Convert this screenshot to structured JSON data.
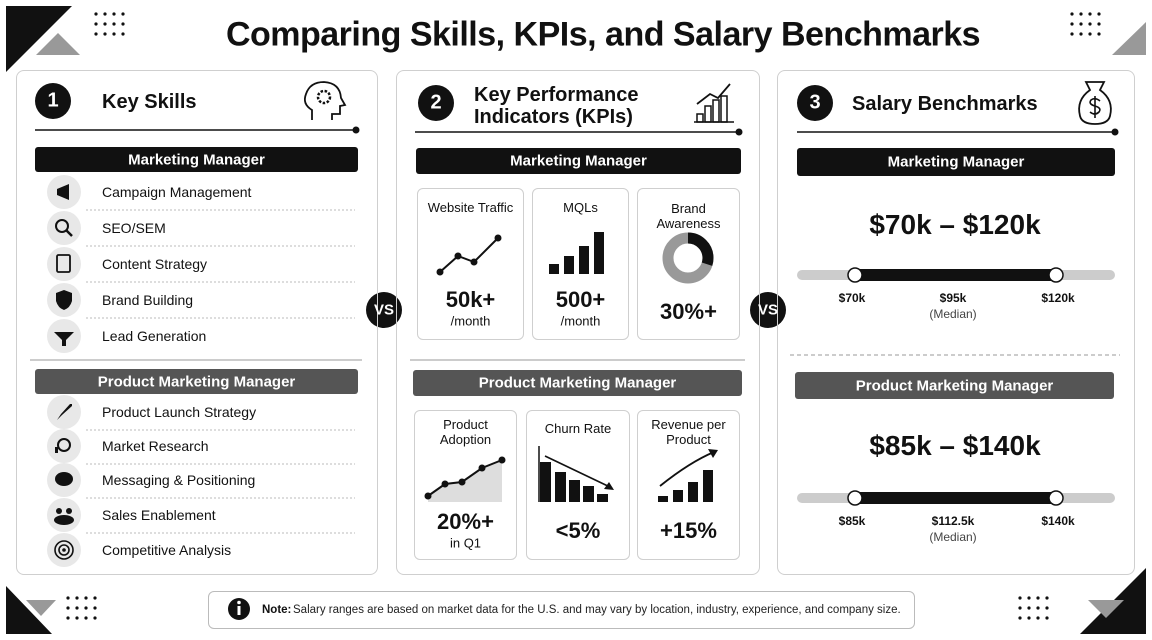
{
  "title": "Comparing Skills, KPIs, and Salary Benchmarks",
  "vs": [
    "VS",
    "VS"
  ],
  "panels": [
    {
      "number": "1",
      "title": "Key Skills",
      "groups": [
        {
          "role": "Marketing Manager",
          "items": [
            "Campaign Management",
            "SEO/SEM",
            "Content Strategy",
            "Brand Building",
            "Lead Generation"
          ]
        },
        {
          "role": "Product Marketing Manager",
          "items": [
            "Product Launch Strategy",
            "Market Research",
            "Messaging & Positioning",
            "Sales Enablement",
            "Competitive Analysis"
          ]
        }
      ]
    },
    {
      "number": "2",
      "title": "Key Performance Indicators (KPIs)",
      "groups": [
        {
          "role": "Marketing Manager",
          "kpis": [
            {
              "label": "Website Traffic",
              "value": "50k+",
              "unit": "/month"
            },
            {
              "label": "MQLs",
              "value": "500+",
              "unit": "/month"
            },
            {
              "label": "Brand Awareness",
              "value": "30%+"
            }
          ]
        },
        {
          "role": "Product Marketing Manager",
          "kpis": [
            {
              "label": "Product Adoption",
              "value": "20%+",
              "unit": "in Q1"
            },
            {
              "label": "Churn Rate",
              "value": "<5%"
            },
            {
              "label": "Revenue per Product",
              "value": "+15%"
            }
          ]
        }
      ]
    },
    {
      "number": "3",
      "title": "Salary Benchmarks",
      "groups": [
        {
          "role": "Marketing Manager",
          "range": "$70k – $120k",
          "min": "$70k",
          "median": "$95k",
          "median_note": "(Median)",
          "max": "$120k"
        },
        {
          "role": "Product Marketing Manager",
          "range": "$85k – $140k",
          "min": "$85k",
          "median": "$112.5k",
          "median_note": "(Median)",
          "max": "$140k"
        }
      ]
    }
  ],
  "note": {
    "label": "Note:",
    "text": "Salary ranges are based on market data for the U.S. and may vary by location, industry, experience, and company size."
  }
}
